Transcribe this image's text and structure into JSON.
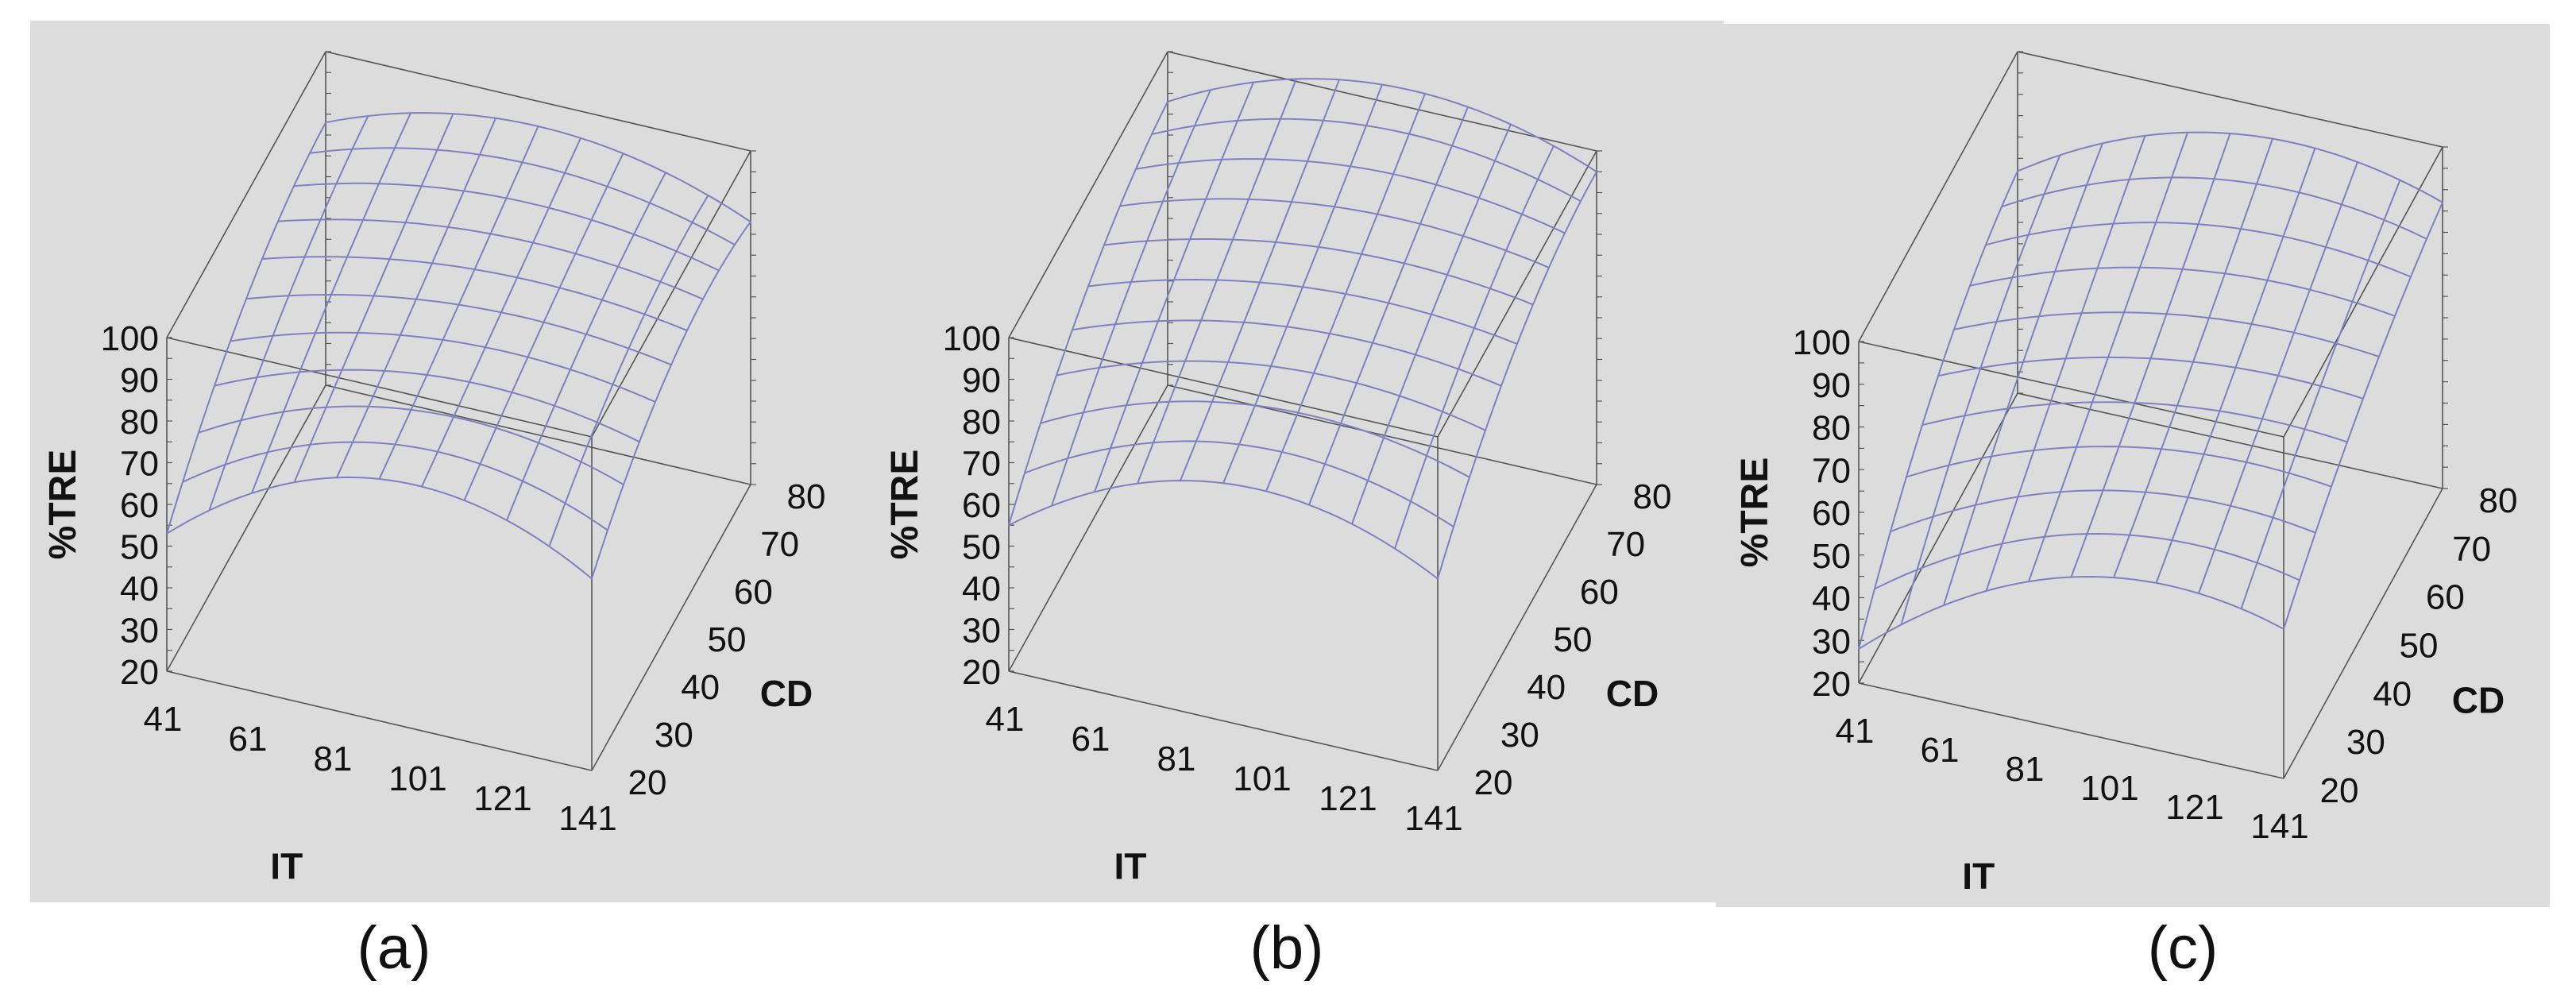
{
  "chart_data": [
    {
      "type": "surface",
      "caption": "(a)",
      "xlabel": "IT",
      "ylabel": "CD",
      "zlabel": "%TRE",
      "x_ticks": [
        "41",
        "61",
        "81",
        "101",
        "121",
        "141"
      ],
      "y_ticks": [
        "20",
        "30",
        "40",
        "50",
        "60",
        "70",
        "80"
      ],
      "z_ticks": [
        "20",
        "30",
        "40",
        "50",
        "60",
        "70",
        "80",
        "90",
        "100"
      ],
      "xlim": [
        41,
        141
      ],
      "ylim": [
        20,
        80
      ],
      "zlim": [
        20,
        100
      ],
      "surface_color": "#8080c0",
      "grid_lines": 11,
      "corner_values": {
        "it41_cd20": 53,
        "it141_cd20": 66,
        "it41_cd80": 83,
        "it141_cd80": 83
      },
      "center_values": {
        "it91_cd20": 78,
        "it91_cd80": 94,
        "it41_cd50": 75,
        "it141_cd50": 83
      }
    },
    {
      "type": "surface",
      "caption": "(b)",
      "xlabel": "IT",
      "ylabel": "CD",
      "zlabel": "%TRE",
      "x_ticks": [
        "41",
        "61",
        "81",
        "101",
        "121",
        "141"
      ],
      "y_ticks": [
        "20",
        "30",
        "40",
        "50",
        "60",
        "70",
        "80"
      ],
      "z_ticks": [
        "20",
        "30",
        "40",
        "50",
        "60",
        "70",
        "80",
        "90",
        "100"
      ],
      "xlim": [
        41,
        141
      ],
      "ylim": [
        20,
        80
      ],
      "zlim": [
        20,
        100
      ],
      "surface_color": "#8080c0",
      "grid_lines": 11,
      "corner_values": {
        "it41_cd20": 55,
        "it141_cd20": 66,
        "it41_cd80": 88,
        "it141_cd80": 95
      },
      "center_values": {
        "it91_cd20": 77,
        "it91_cd80": 104,
        "it41_cd50": 78,
        "it141_cd50": 88
      }
    },
    {
      "type": "surface",
      "caption": "(c)",
      "xlabel": "IT",
      "ylabel": "CD",
      "zlabel": "%TRE",
      "x_ticks": [
        "41",
        "61",
        "81",
        "101",
        "121",
        "141"
      ],
      "y_ticks": [
        "20",
        "30",
        "40",
        "50",
        "60",
        "70",
        "80"
      ],
      "z_ticks": [
        "20",
        "30",
        "40",
        "50",
        "60",
        "70",
        "80",
        "90",
        "100"
      ],
      "xlim": [
        41,
        141
      ],
      "ylim": [
        20,
        80
      ],
      "zlim": [
        20,
        100
      ],
      "surface_color": "#8080c0",
      "grid_lines": 11,
      "corner_values": {
        "it41_cd20": 28,
        "it141_cd20": 55,
        "it41_cd80": 72,
        "it141_cd80": 87
      },
      "center_values": {
        "it91_cd20": 56,
        "it91_cd80": 92,
        "it41_cd50": 58,
        "it141_cd50": 75
      }
    }
  ]
}
